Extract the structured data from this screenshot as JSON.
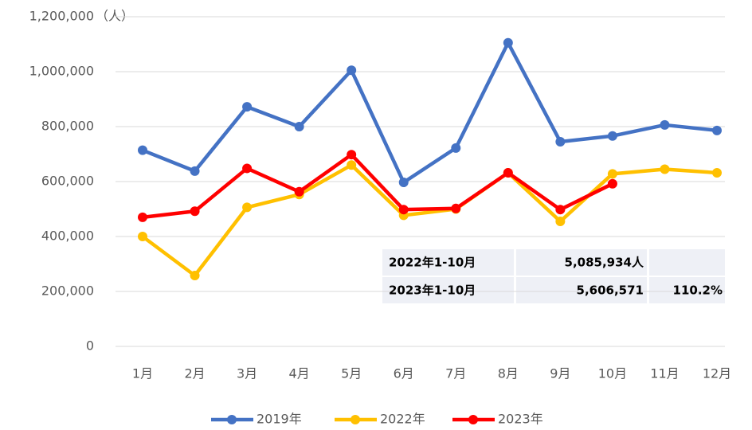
{
  "chart_data": {
    "type": "line",
    "y_label": "（人）",
    "categories": [
      "1月",
      "2月",
      "3月",
      "4月",
      "5月",
      "6月",
      "7月",
      "8月",
      "9月",
      "10月",
      "11月",
      "12月"
    ],
    "series": [
      {
        "name": "2019年",
        "color": "#4472c4",
        "values": [
          714000,
          638000,
          872000,
          800000,
          1005000,
          597000,
          722000,
          1105000,
          745000,
          766000,
          806000,
          786000
        ]
      },
      {
        "name": "2022年",
        "color": "#ffc000",
        "values": [
          400000,
          258000,
          506000,
          553000,
          660000,
          477000,
          500000,
          632000,
          455000,
          628000,
          645000,
          632000
        ]
      },
      {
        "name": "2023年",
        "color": "#ff0000",
        "values": [
          470000,
          492000,
          648000,
          563000,
          698000,
          498000,
          502000,
          632000,
          498000,
          592000,
          null,
          null
        ]
      }
    ],
    "ylim": [
      0,
      1200000
    ],
    "yticks": [
      0,
      {
        "value": 200000,
        "label": "200,000"
      },
      {
        "value": 400000,
        "label": "400,000"
      },
      {
        "value": 600000,
        "label": "600,000"
      },
      {
        "value": 800000,
        "label": "800,000"
      },
      {
        "value": 1000000,
        "label": "1,000,000"
      },
      {
        "value": 1200000,
        "label": "1,200,000"
      }
    ],
    "grid": true,
    "legend": "bottom"
  },
  "table": {
    "rows": [
      [
        "2022年1-10月",
        "5,085,934人"
      ],
      [
        "2023年1-10月",
        "5,606,571",
        "110.2%"
      ]
    ]
  }
}
